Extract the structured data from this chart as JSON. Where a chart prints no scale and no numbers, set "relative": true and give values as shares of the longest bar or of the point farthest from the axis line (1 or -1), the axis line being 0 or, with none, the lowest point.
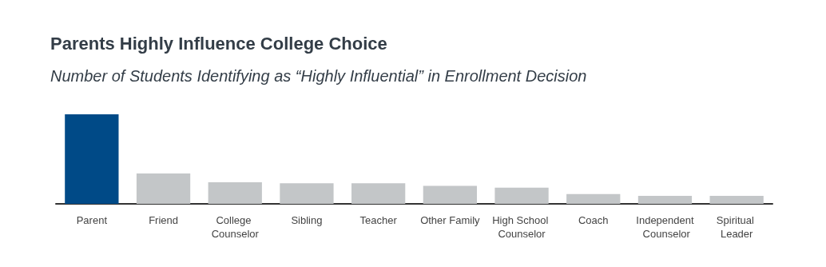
{
  "chart_data": {
    "type": "bar",
    "title": "Parents Highly Influence College Choice",
    "subtitle": "Number of Students Identifying as “Highly Influential” in Enrollment Decision",
    "categories": [
      "Parent",
      "Friend",
      "College Counselor",
      "Sibling",
      "Teacher",
      "Other Family",
      "High School Counselor",
      "Coach",
      "Independent Counselor",
      "Spiritual Leader"
    ],
    "values": [
      1,
      0.34,
      0.24,
      0.23,
      0.23,
      0.2,
      0.18,
      0.11,
      0.09,
      0.09
    ],
    "colors": [
      "#004a87",
      "#c3c6c8",
      "#c3c6c8",
      "#c3c6c8",
      "#c3c6c8",
      "#c3c6c8",
      "#c3c6c8",
      "#c3c6c8",
      "#c3c6c8",
      "#c3c6c8"
    ],
    "relative": true
  }
}
